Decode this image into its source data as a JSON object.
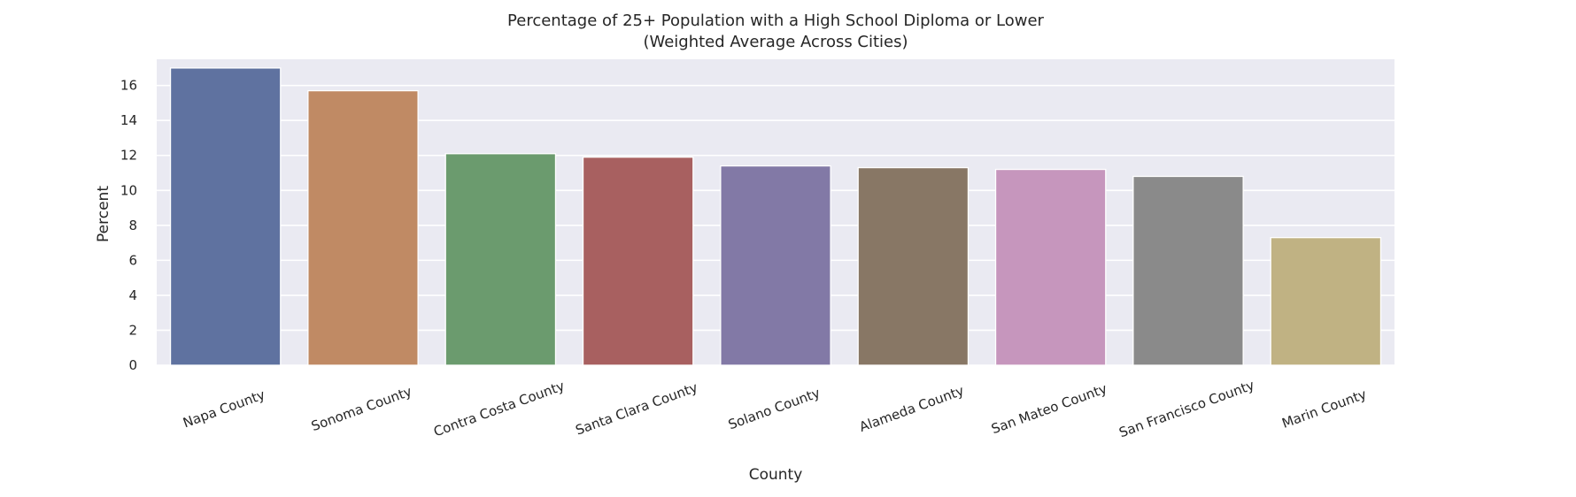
{
  "chart_data": {
    "type": "bar",
    "title": "Percentage of 25+ Population with a High School Diploma or Lower",
    "subtitle": "(Weighted Average Across Cities)",
    "xlabel": "County",
    "ylabel": "Percent",
    "categories": [
      "Napa County",
      "Sonoma County",
      "Contra Costa County",
      "Santa Clara County",
      "Solano County",
      "Alameda County",
      "San Mateo County",
      "San Francisco County",
      "Marin County"
    ],
    "values": [
      17.0,
      15.7,
      12.1,
      11.9,
      11.4,
      11.3,
      11.2,
      10.8,
      7.3
    ],
    "colors": [
      "#5f72a0",
      "#c08a64",
      "#6b9b6e",
      "#a86060",
      "#8279a6",
      "#887765",
      "#c696bd",
      "#8a8a8a",
      "#c0b283"
    ],
    "ylim": [
      0,
      17.5
    ],
    "yticks": [
      0,
      2,
      4,
      6,
      8,
      10,
      12,
      14,
      16
    ],
    "grid": true,
    "plot_background": "#eaeaf2",
    "legend": "none"
  }
}
